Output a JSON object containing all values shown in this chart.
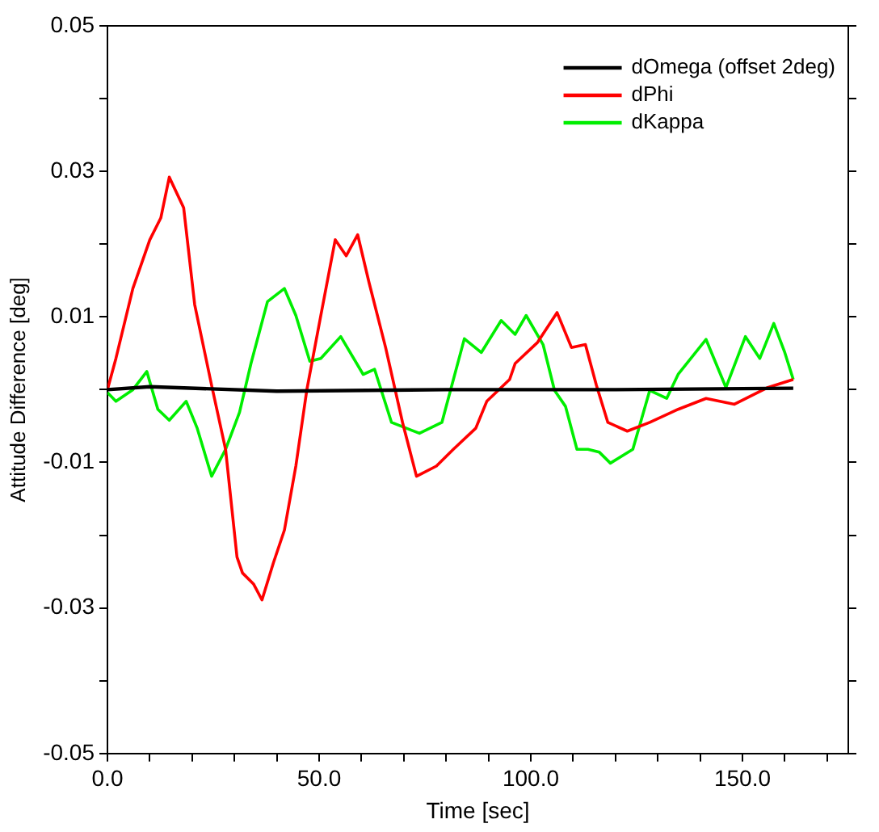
{
  "chart_data": {
    "type": "line",
    "xlabel": "Time [sec]",
    "ylabel": "Attitude Difference [deg]",
    "xlim": [
      0,
      175
    ],
    "xticks": [
      {
        "value": 0,
        "label": "0.0"
      },
      {
        "value": 10,
        "label": null
      },
      {
        "value": 20,
        "label": null
      },
      {
        "value": 30,
        "label": null
      },
      {
        "value": 40,
        "label": null
      },
      {
        "value": 50,
        "label": "50.0"
      },
      {
        "value": 60,
        "label": null
      },
      {
        "value": 70,
        "label": null
      },
      {
        "value": 80,
        "label": null
      },
      {
        "value": 90,
        "label": null
      },
      {
        "value": 100,
        "label": "100.0"
      },
      {
        "value": 110,
        "label": null
      },
      {
        "value": 120,
        "label": null
      },
      {
        "value": 130,
        "label": null
      },
      {
        "value": 140,
        "label": null
      },
      {
        "value": 150,
        "label": "150.0"
      },
      {
        "value": 160,
        "label": null
      },
      {
        "value": 170,
        "label": null
      }
    ],
    "ylim": [
      -0.05,
      0.05
    ],
    "yticks": [
      -0.05,
      {
        "value": -0.04,
        "label": null
      },
      -0.03,
      {
        "value": -0.02,
        "label": null
      },
      -0.01,
      {
        "value": 0,
        "label": null
      },
      0.01,
      {
        "value": 0.02,
        "label": null
      },
      0.03,
      {
        "value": 0.04,
        "label": null
      },
      0.05
    ],
    "grid": false,
    "legend": "top right",
    "marker": "none",
    "line_style": "solid",
    "series": [
      {
        "name": "dOmega (offset 2deg)",
        "color": "#000000",
        "x": [
          0,
          10,
          40,
          80,
          120,
          162
        ],
        "values": [
          0,
          0.0004,
          -0.0002,
          0,
          0,
          0.0002
        ]
      },
      {
        "name": "dPhi",
        "color": "#ff0000",
        "x": [
          0,
          2,
          6,
          10,
          12.6,
          14.6,
          18,
          20.6,
          24.6,
          27.9,
          30.6,
          31.9,
          34.5,
          36.5,
          39.2,
          41.8,
          44.5,
          47.1,
          50.4,
          53.8,
          56.4,
          59.1,
          61.8,
          65.7,
          69.7,
          73,
          77.7,
          81.7,
          87,
          89.6,
          95,
          96.3,
          101.6,
          106.2,
          109.6,
          112.9,
          115.5,
          118.2,
          122.8,
          128.1,
          134.8,
          141.4,
          148.1,
          156,
          162
        ],
        "values": [
          0,
          0.0043,
          0.0139,
          0.0206,
          0.0236,
          0.0292,
          0.025,
          0.0117,
          0.0006,
          -0.0082,
          -0.023,
          -0.0252,
          -0.0267,
          -0.0289,
          -0.0238,
          -0.0193,
          -0.0105,
          0,
          0.0102,
          0.0206,
          0.0184,
          0.0213,
          0.0147,
          0.0058,
          -0.0045,
          -0.0119,
          -0.0105,
          -0.0082,
          -0.0053,
          -0.0016,
          0.0014,
          0.0036,
          0.0065,
          0.0106,
          0.0058,
          0.0062,
          0.0006,
          -0.0045,
          -0.0057,
          -0.0045,
          -0.0027,
          -0.0012,
          -0.002,
          0.0003,
          0.0014
        ]
      },
      {
        "name": "dKappa",
        "color": "#00ee00",
        "x": [
          0,
          2,
          6,
          9.3,
          11.9,
          14.6,
          18.6,
          21.2,
          24.6,
          27.9,
          31.2,
          33.9,
          37.8,
          41.8,
          44.5,
          47.8,
          50.4,
          55.1,
          60.4,
          63.1,
          67.1,
          73.7,
          79,
          84.3,
          88.3,
          93,
          96.3,
          98.9,
          102.9,
          105.6,
          108.2,
          110.9,
          113.5,
          116.2,
          118.8,
          124.1,
          128.1,
          132.1,
          134.8,
          141.4,
          146.1,
          150.7,
          154.1,
          157.4,
          160,
          162
        ],
        "values": [
          -0.0004,
          -0.0016,
          0,
          0.0025,
          -0.0027,
          -0.0042,
          -0.0016,
          -0.0053,
          -0.0119,
          -0.0082,
          -0.0031,
          0.0036,
          0.0121,
          0.0139,
          0.0102,
          0.0039,
          0.0043,
          0.0073,
          0.0021,
          0.0028,
          -0.0045,
          -0.006,
          -0.0045,
          0.007,
          0.0051,
          0.0095,
          0.0076,
          0.0102,
          0.0062,
          -0.0001,
          -0.0023,
          -0.0082,
          -0.0082,
          -0.0086,
          -0.0101,
          -0.0082,
          -0.0001,
          -0.0012,
          0.0021,
          0.0069,
          0.0003,
          0.0073,
          0.0043,
          0.0091,
          0.0051,
          0.0014
        ]
      }
    ]
  }
}
